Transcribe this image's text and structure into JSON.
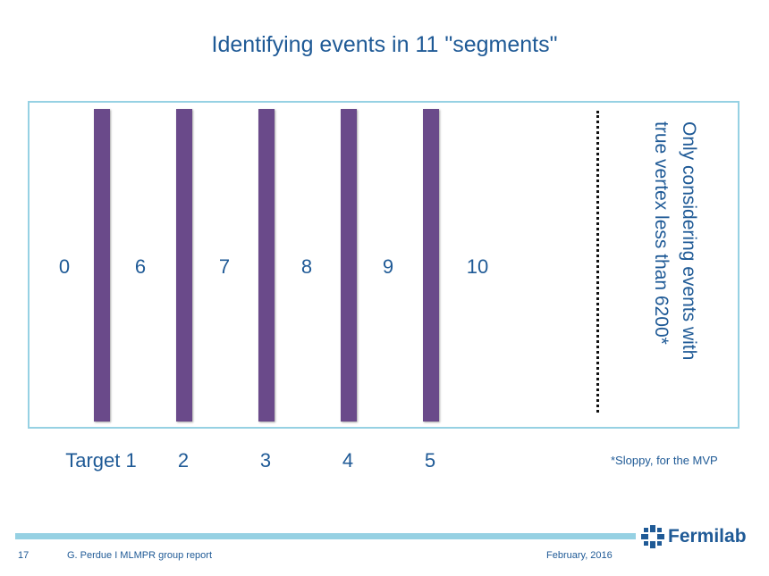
{
  "slide": {
    "title": "Identifying events in 11 \"segments\"",
    "segments": [
      "0",
      "6",
      "7",
      "8",
      "9",
      "10"
    ],
    "targets": [
      "Target 1",
      "2",
      "3",
      "4",
      "5"
    ],
    "side_note_line1": "Only considering events with",
    "side_note_line2": "true vertex less than 6200*",
    "footnote": "*Sloppy, for the MVP"
  },
  "footer": {
    "page_number": "17",
    "author": "G. Perdue I MLMPR group report",
    "date": "February, 2016",
    "logo_text": "Fermilab",
    "logo_icon": "fermilab-logo-icon"
  },
  "colors": {
    "title_text": "#1f5a96",
    "frame_border": "#96d1e3",
    "target_bar": "#6a4a8a",
    "footer_bar": "#96d1e3"
  }
}
